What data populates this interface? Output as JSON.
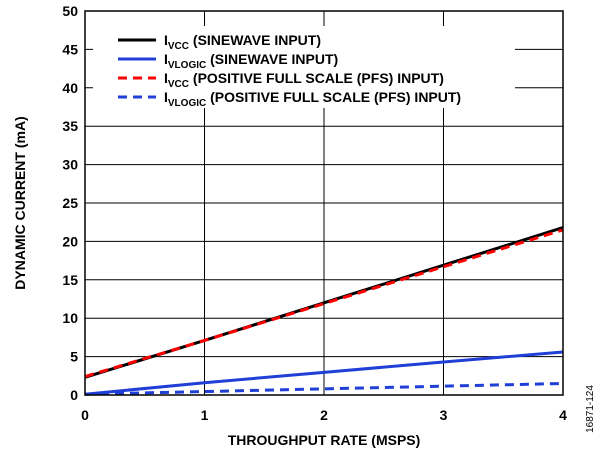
{
  "chart_data": {
    "type": "line",
    "title": "",
    "xlabel": "THROUGHPUT RATE (MSPS)",
    "ylabel": "DYNAMIC CURRENT (mA)",
    "xlim": [
      0,
      4
    ],
    "ylim": [
      0,
      50
    ],
    "x_ticks": [
      "0",
      "1",
      "2",
      "3",
      "4"
    ],
    "y_ticks": [
      "0",
      "5",
      "10",
      "15",
      "20",
      "25",
      "30",
      "35",
      "40",
      "45",
      "50"
    ],
    "grid": true,
    "legend_placement": "top-left",
    "series": [
      {
        "name_main": "I",
        "name_sub": "VCC",
        "name_rest": " (SINEWAVE INPUT)",
        "color": "#000000",
        "style": "solid",
        "x": [
          0,
          1,
          2,
          3,
          4
        ],
        "y": [
          2.3,
          7.1,
          12.0,
          16.9,
          21.8
        ]
      },
      {
        "name_main": "I",
        "name_sub": "VLOGIC",
        "name_rest": " (SINEWAVE INPUT)",
        "color": "#1f3fd6",
        "style": "solid",
        "x": [
          0,
          1,
          2,
          3,
          4
        ],
        "y": [
          0.1,
          1.6,
          2.95,
          4.3,
          5.6
        ]
      },
      {
        "name_main": "I",
        "name_sub": "VCC",
        "name_rest": " (POSITIVE FULL SCALE (PFS) INPUT)",
        "color": "#ff0000",
        "style": "dashed",
        "x": [
          0,
          1,
          2,
          3,
          4
        ],
        "y": [
          2.4,
          7.1,
          11.9,
          16.7,
          21.5
        ]
      },
      {
        "name_main": "I",
        "name_sub": "VLOGIC",
        "name_rest": " (POSITIVE FULL SCALE (PFS) INPUT)",
        "color": "#1f3fd6",
        "style": "dashed",
        "x": [
          0,
          1,
          2,
          3,
          4
        ],
        "y": [
          0.1,
          0.45,
          0.8,
          1.15,
          1.5
        ]
      }
    ]
  },
  "figure_id": "16871-124"
}
